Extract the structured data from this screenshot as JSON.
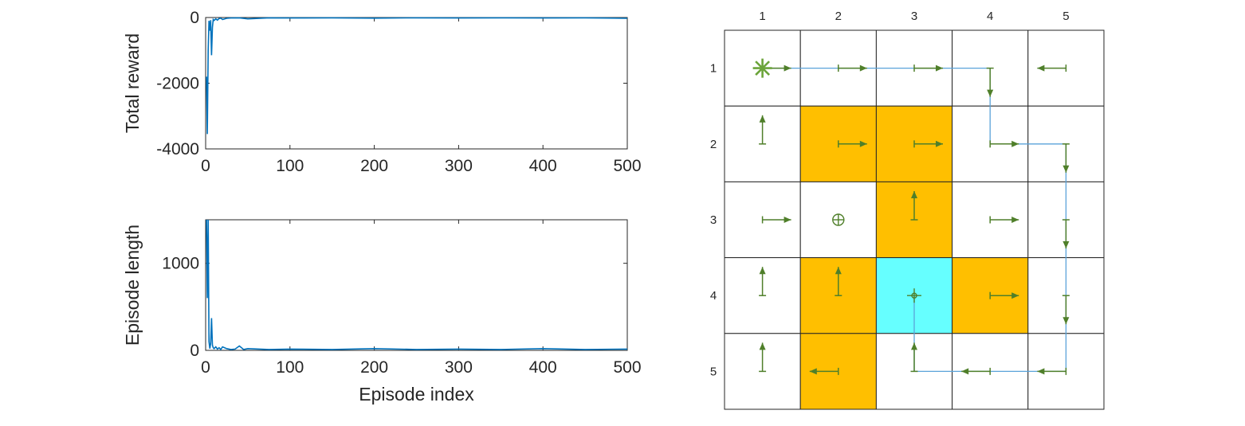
{
  "chart_data": [
    {
      "type": "line",
      "ylabel": "Total reward",
      "xlim": [
        0,
        500
      ],
      "ylim": [
        -4000,
        0
      ],
      "x_ticks": [
        0,
        100,
        200,
        300,
        400,
        500
      ],
      "y_ticks": [
        0,
        -2000,
        -4000
      ],
      "color": "#0072BD",
      "series": [
        {
          "x": [
            1,
            2,
            3,
            4,
            5,
            6,
            7,
            8,
            9,
            10,
            12,
            14,
            16,
            18,
            20,
            25,
            30,
            40,
            50,
            75,
            100,
            150,
            200,
            250,
            300,
            350,
            400,
            450,
            500
          ],
          "values": [
            -1800,
            -3550,
            -1000,
            -100,
            -400,
            -80,
            -1150,
            -300,
            -60,
            -90,
            -40,
            -80,
            -30,
            -20,
            -60,
            -25,
            -15,
            -10,
            -40,
            -10,
            -15,
            -10,
            -20,
            -10,
            -15,
            -10,
            -15,
            -10,
            -25
          ]
        }
      ]
    },
    {
      "type": "line",
      "ylabel": "Episode length",
      "xlabel": "Episode index",
      "xlim": [
        0,
        500
      ],
      "ylim": [
        0,
        1500
      ],
      "x_ticks": [
        0,
        100,
        200,
        300,
        400,
        500
      ],
      "y_ticks": [
        1000,
        0
      ],
      "color": "#0072BD",
      "series": [
        {
          "x": [
            1,
            2,
            3,
            4,
            5,
            6,
            7,
            8,
            9,
            10,
            12,
            14,
            16,
            18,
            20,
            25,
            30,
            35,
            40,
            45,
            50,
            75,
            100,
            150,
            200,
            250,
            300,
            350,
            400,
            450,
            500
          ],
          "values": [
            1500,
            600,
            1500,
            100,
            20,
            80,
            370,
            60,
            30,
            20,
            40,
            15,
            30,
            10,
            40,
            20,
            10,
            15,
            50,
            10,
            20,
            10,
            15,
            10,
            20,
            10,
            15,
            10,
            20,
            10,
            15
          ]
        }
      ]
    },
    {
      "type": "grid-policy",
      "columns": [
        "1",
        "2",
        "3",
        "4",
        "5"
      ],
      "rows": [
        "1",
        "2",
        "3",
        "4",
        "5"
      ],
      "forbidden_color": "#FFBF00",
      "target_color": "#66FFFF",
      "arrow_color": "#4F7F2A",
      "path_color": "#5AA3D9",
      "start_color": "#6BA43A",
      "forbidden_cells": [
        [
          2,
          2
        ],
        [
          2,
          3
        ],
        [
          3,
          3
        ],
        [
          4,
          2
        ],
        [
          4,
          4
        ],
        [
          5,
          2
        ]
      ],
      "target_cell": [
        4,
        3
      ],
      "start_cell": [
        1,
        1
      ],
      "policy": [
        [
          "right",
          "right",
          "right",
          "down",
          "left"
        ],
        [
          "up",
          "right",
          "right",
          "right",
          "down"
        ],
        [
          "right",
          "stay",
          "up",
          "right",
          "down"
        ],
        [
          "up",
          "up",
          "stay",
          "right",
          "down"
        ],
        [
          "up",
          "left",
          "up",
          "left",
          "left"
        ]
      ],
      "path": [
        [
          1,
          1
        ],
        [
          1,
          2
        ],
        [
          1,
          3
        ],
        [
          1,
          4
        ],
        [
          2,
          4
        ],
        [
          2,
          5
        ],
        [
          3,
          5
        ],
        [
          4,
          5
        ],
        [
          5,
          5
        ],
        [
          5,
          4
        ],
        [
          5,
          3
        ],
        [
          4,
          3
        ]
      ]
    }
  ]
}
